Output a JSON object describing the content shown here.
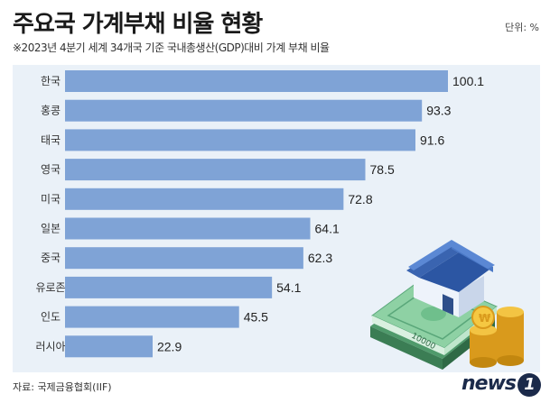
{
  "header": {
    "title": "주요국 가계부채 비율 현황",
    "unit": "단위: %",
    "subtitle": "※2023년 4분기 세계 34개국 기준 국내총생산(GDP)대비 가계 부채 비율"
  },
  "footer": {
    "source": "자료: 국제금융협회(IIF)",
    "logo_text": "news",
    "logo_mark": "1"
  },
  "colors": {
    "bar": "#7fa3d6",
    "plot_bg": "#eaf1f8",
    "label": "#333333"
  },
  "chart_data": {
    "type": "bar",
    "orientation": "horizontal",
    "categories": [
      "한국",
      "홍콩",
      "태국",
      "영국",
      "미국",
      "일본",
      "중국",
      "유로존",
      "인도",
      "러시아"
    ],
    "values": [
      100.1,
      93.3,
      91.6,
      78.5,
      72.8,
      64.1,
      62.3,
      54.1,
      45.5,
      22.9
    ],
    "xlim": [
      0,
      100.1
    ],
    "grid": false,
    "legend": "none"
  },
  "illustration": {
    "banknote_text": "10000"
  }
}
